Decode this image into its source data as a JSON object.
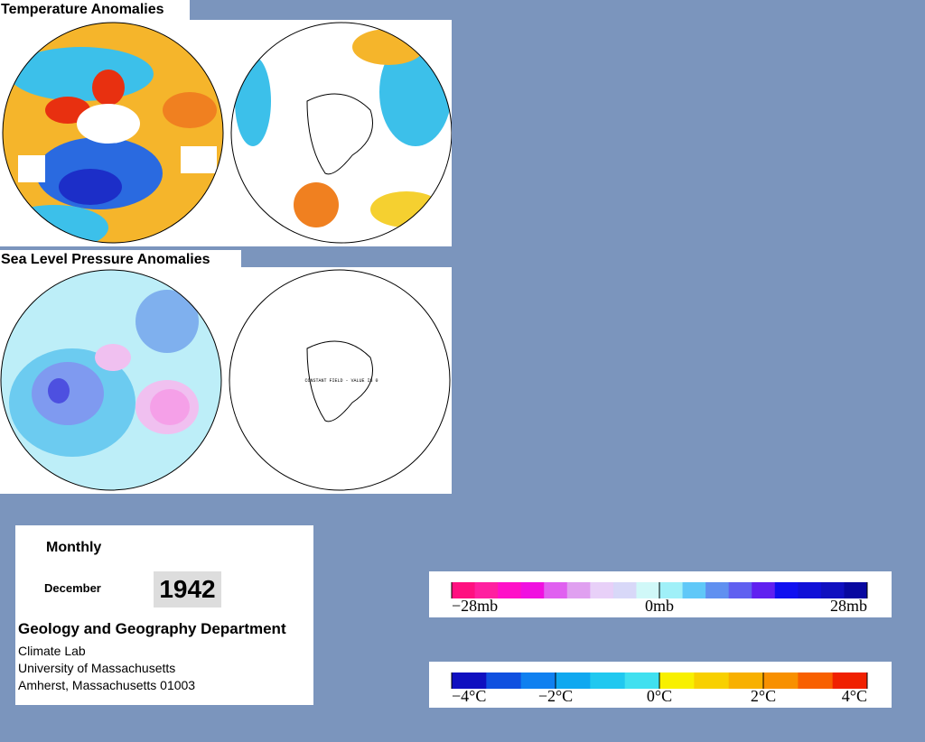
{
  "maps": {
    "temperature_title": "Temperature Anomalies",
    "pressure_title": "Sea Level Pressure Anomalies",
    "constant_field_note": "CONSTANT FIELD - VALUE IS 0"
  },
  "info": {
    "period": "Monthly",
    "month": "December",
    "year": "1942",
    "department": "Geology and Geography Department",
    "lines": [
      "Climate Lab",
      "University of Massachusetts",
      "Amherst, Massachusetts 01003"
    ]
  },
  "pressure_scale": {
    "labels": [
      "−28mb",
      "0mb",
      "28mb"
    ]
  },
  "temperature_scale": {
    "labels": [
      "−4°C",
      "−2°C",
      "0°C",
      "2°C",
      "4°C"
    ]
  }
}
